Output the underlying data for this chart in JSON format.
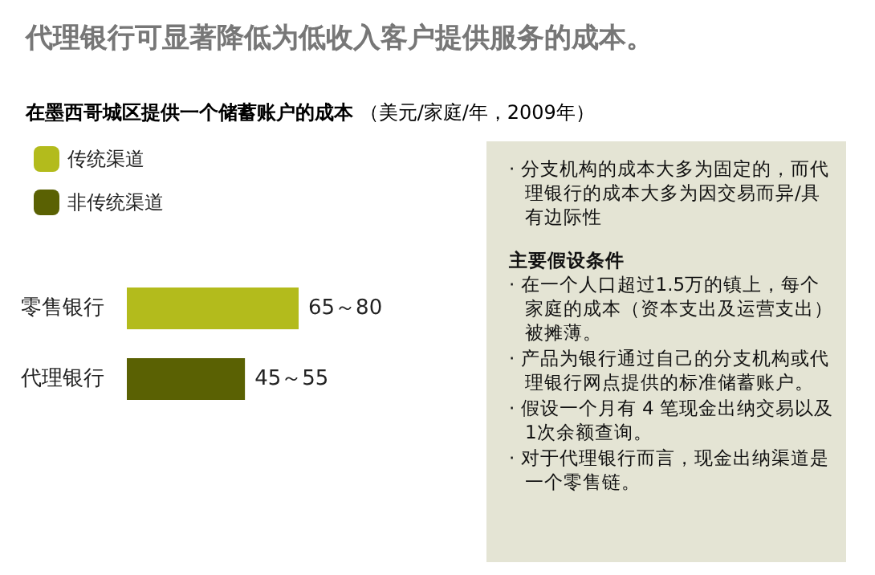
{
  "chart_data": {
    "type": "bar",
    "orientation": "horizontal",
    "title": "代理银行可显著降低为低收入客户提供服务的成本。",
    "subtitle": "在墨西哥城区提供一个储蓄账户的成本（美元/家庭/年，2009年）",
    "categories": [
      "零售银行",
      "代理银行"
    ],
    "series": [
      {
        "name": "传统渠道",
        "color": "#b3bb1c",
        "values": [
          80,
          null
        ],
        "value_labels": [
          "65～80",
          null
        ]
      },
      {
        "name": "非传统渠道",
        "color": "#5a6103",
        "values": [
          null,
          55
        ],
        "value_labels": [
          null,
          "45～55"
        ]
      }
    ],
    "legend": "top left",
    "tick_labels": "y",
    "annotations": [
      "· 分支机构的成本大多为固定的，而代理银行的成本大多为因交易而异/具有边际性",
      "主要假设条件",
      "· 在一个人口超过1.5万的镇上，每个家庭的成本（资本支出及运营支出）被摊薄。",
      "· 产品为银行通过自己的分支机构或代理银行网点提供的标准储蓄账户。",
      "· 假设一个月有 4 笔现金出纳交易以及1次余额查询。",
      "· 对于代理银行而言，现金出纳渠道是一个零售链。"
    ]
  }
}
